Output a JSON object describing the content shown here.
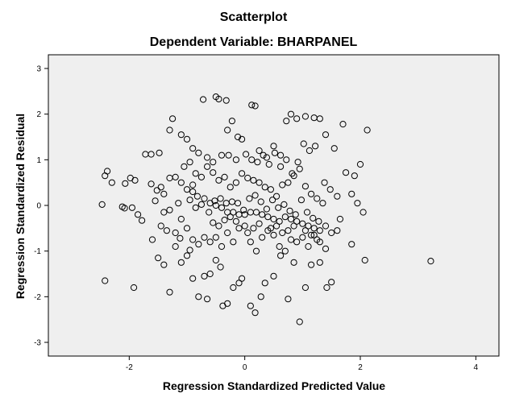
{
  "chart_data": {
    "type": "scatter",
    "title": "Scatterplot",
    "subtitle": "Dependent Variable: BHARPANEL",
    "xlabel": "Regression Standardized Predicted Value",
    "ylabel": "Regression Standardized Residual",
    "xlim": [
      -3.4,
      4.4
    ],
    "ylim": [
      -3.3,
      3.3
    ],
    "x_ticks": [
      -2,
      0,
      2,
      4
    ],
    "y_ticks": [
      -3,
      -2,
      -1,
      0,
      1,
      2,
      3
    ],
    "grid": false,
    "legend": "none",
    "colors": {
      "plot_background": "#efefef",
      "marker_stroke": "#000000",
      "marker_fill": "none"
    },
    "points": [
      [
        -2.42,
        0.65
      ],
      [
        -2.38,
        0.75
      ],
      [
        -2.3,
        0.5
      ],
      [
        -2.47,
        0.02
      ],
      [
        -2.42,
        -1.65
      ],
      [
        -2.12,
        -0.03
      ],
      [
        -2.08,
        -0.06
      ],
      [
        -1.98,
        0.6
      ],
      [
        -1.92,
        -1.8
      ],
      [
        -1.9,
        0.55
      ],
      [
        -2.07,
        0.48
      ],
      [
        -1.72,
        1.12
      ],
      [
        -1.62,
        1.12
      ],
      [
        -1.62,
        0.47
      ],
      [
        -1.52,
        0.33
      ],
      [
        -1.48,
        1.15
      ],
      [
        -1.45,
        0.4
      ],
      [
        -1.4,
        0.25
      ],
      [
        -1.3,
        0.6
      ],
      [
        -1.2,
        0.62
      ],
      [
        -1.1,
        0.5
      ],
      [
        -1.0,
        0.35
      ],
      [
        -0.9,
        0.3
      ],
      [
        -0.82,
        0.2
      ],
      [
        -0.7,
        0.15
      ],
      [
        -0.6,
        0.05
      ],
      [
        -0.5,
        0.0
      ],
      [
        -0.4,
        -0.05
      ],
      [
        -0.3,
        -0.15
      ],
      [
        -0.2,
        -0.15
      ],
      [
        -0.1,
        -0.2
      ],
      [
        0.0,
        -0.2
      ],
      [
        0.1,
        -0.15
      ],
      [
        0.2,
        -0.15
      ],
      [
        0.3,
        -0.2
      ],
      [
        0.4,
        -0.25
      ],
      [
        0.5,
        -0.3
      ],
      [
        0.6,
        -0.35
      ],
      [
        0.7,
        -0.25
      ],
      [
        0.8,
        -0.3
      ],
      [
        0.9,
        -0.35
      ],
      [
        1.0,
        -0.4
      ],
      [
        1.1,
        -0.45
      ],
      [
        1.2,
        -0.5
      ],
      [
        1.3,
        -0.55
      ],
      [
        1.4,
        -0.45
      ],
      [
        1.5,
        -0.6
      ],
      [
        1.6,
        -0.55
      ],
      [
        -1.78,
        -0.33
      ],
      [
        -1.6,
        -0.75
      ],
      [
        -1.45,
        -0.45
      ],
      [
        -1.35,
        -0.55
      ],
      [
        -1.3,
        -0.1
      ],
      [
        -1.2,
        -0.6
      ],
      [
        -1.1,
        -0.3
      ],
      [
        -1.0,
        -0.5
      ],
      [
        -0.9,
        -0.75
      ],
      [
        -0.8,
        -0.85
      ],
      [
        -0.7,
        -0.7
      ],
      [
        -0.6,
        -0.8
      ],
      [
        -0.5,
        -0.7
      ],
      [
        -0.4,
        -0.9
      ],
      [
        -0.3,
        -0.6
      ],
      [
        -0.2,
        -0.8
      ],
      [
        -0.1,
        -0.5
      ],
      [
        0.0,
        -0.45
      ],
      [
        0.1,
        -0.8
      ],
      [
        0.2,
        -1.0
      ],
      [
        0.3,
        -0.7
      ],
      [
        0.4,
        -0.55
      ],
      [
        0.5,
        -0.65
      ],
      [
        0.6,
        -0.9
      ],
      [
        0.7,
        -1.0
      ],
      [
        0.8,
        -0.75
      ],
      [
        0.9,
        -0.8
      ],
      [
        1.0,
        -0.7
      ],
      [
        1.1,
        -0.9
      ],
      [
        1.2,
        -0.65
      ],
      [
        1.3,
        -0.8
      ],
      [
        1.4,
        -0.95
      ],
      [
        -1.25,
        1.9
      ],
      [
        -1.3,
        1.65
      ],
      [
        -1.1,
        1.55
      ],
      [
        -1.0,
        1.45
      ],
      [
        -0.9,
        1.25
      ],
      [
        -0.8,
        1.15
      ],
      [
        -0.72,
        2.32
      ],
      [
        -0.5,
        2.38
      ],
      [
        -0.45,
        2.33
      ],
      [
        -0.32,
        2.3
      ],
      [
        -0.22,
        1.85
      ],
      [
        -0.3,
        1.65
      ],
      [
        -0.12,
        1.5
      ],
      [
        -0.05,
        1.45
      ],
      [
        0.12,
        2.2
      ],
      [
        0.18,
        2.18
      ],
      [
        0.25,
        1.2
      ],
      [
        0.38,
        1.05
      ],
      [
        0.5,
        1.3
      ],
      [
        0.62,
        1.1
      ],
      [
        0.72,
        1.85
      ],
      [
        0.8,
        2.0
      ],
      [
        0.9,
        1.9
      ],
      [
        1.05,
        1.95
      ],
      [
        1.2,
        1.92
      ],
      [
        1.3,
        1.9
      ],
      [
        1.4,
        1.55
      ],
      [
        1.55,
        1.25
      ],
      [
        1.7,
        1.78
      ],
      [
        1.9,
        0.65
      ],
      [
        2.0,
        0.9
      ],
      [
        2.12,
        1.65
      ],
      [
        1.75,
        0.72
      ],
      [
        1.85,
        0.25
      ],
      [
        1.95,
        0.05
      ],
      [
        2.05,
        -0.15
      ],
      [
        1.6,
        0.2
      ],
      [
        1.65,
        -0.3
      ],
      [
        1.85,
        -0.85
      ],
      [
        2.08,
        -1.2
      ],
      [
        3.22,
        -1.22
      ],
      [
        -1.95,
        -0.05
      ],
      [
        -1.85,
        -0.2
      ],
      [
        -1.5,
        -1.15
      ],
      [
        -1.4,
        -1.3
      ],
      [
        -1.3,
        -1.9
      ],
      [
        -1.1,
        -1.25
      ],
      [
        -1.0,
        -1.1
      ],
      [
        -0.9,
        -1.6
      ],
      [
        -0.8,
        -2.0
      ],
      [
        -0.7,
        -1.55
      ],
      [
        -0.65,
        -2.05
      ],
      [
        -0.6,
        -1.5
      ],
      [
        -0.5,
        -1.2
      ],
      [
        -0.42,
        -1.35
      ],
      [
        -0.38,
        -2.2
      ],
      [
        -0.3,
        -2.15
      ],
      [
        -0.2,
        -1.8
      ],
      [
        -0.1,
        -1.7
      ],
      [
        -0.05,
        -1.6
      ],
      [
        0.1,
        -2.2
      ],
      [
        0.18,
        -2.35
      ],
      [
        0.28,
        -2.0
      ],
      [
        0.35,
        -1.7
      ],
      [
        0.5,
        -1.55
      ],
      [
        0.62,
        -1.1
      ],
      [
        0.75,
        -2.05
      ],
      [
        0.85,
        -1.25
      ],
      [
        0.95,
        -2.55
      ],
      [
        1.05,
        -1.8
      ],
      [
        1.15,
        -1.3
      ],
      [
        1.3,
        -1.25
      ],
      [
        1.42,
        -1.8
      ],
      [
        1.5,
        -1.68
      ],
      [
        -0.9,
        0.45
      ],
      [
        -0.75,
        0.62
      ],
      [
        -0.65,
        0.85
      ],
      [
        -0.55,
        0.72
      ],
      [
        -0.45,
        0.55
      ],
      [
        -0.35,
        0.62
      ],
      [
        -0.25,
        0.4
      ],
      [
        -0.15,
        0.5
      ],
      [
        -0.05,
        0.7
      ],
      [
        0.05,
        0.6
      ],
      [
        0.15,
        0.55
      ],
      [
        0.25,
        0.5
      ],
      [
        0.35,
        0.4
      ],
      [
        0.45,
        0.35
      ],
      [
        0.55,
        0.2
      ],
      [
        0.65,
        0.45
      ],
      [
        0.75,
        0.5
      ],
      [
        0.85,
        0.65
      ],
      [
        0.95,
        0.8
      ],
      [
        1.05,
        0.42
      ],
      [
        1.15,
        0.25
      ],
      [
        1.25,
        0.15
      ],
      [
        1.35,
        0.05
      ],
      [
        -1.55,
        0.1
      ],
      [
        -1.4,
        -0.15
      ],
      [
        -1.15,
        0.05
      ],
      [
        -0.95,
        0.12
      ],
      [
        -0.85,
        -0.05
      ],
      [
        -0.75,
        0.02
      ],
      [
        -0.62,
        -0.15
      ],
      [
        -0.52,
        0.1
      ],
      [
        -0.42,
        0.15
      ],
      [
        -0.32,
        0.05
      ],
      [
        -0.22,
        0.08
      ],
      [
        -0.12,
        0.05
      ],
      [
        -0.02,
        -0.1
      ],
      [
        0.08,
        0.15
      ],
      [
        0.18,
        0.22
      ],
      [
        0.28,
        0.08
      ],
      [
        0.38,
        -0.08
      ],
      [
        0.48,
        0.12
      ],
      [
        0.58,
        -0.05
      ],
      [
        0.68,
        0.02
      ],
      [
        0.78,
        -0.12
      ],
      [
        0.88,
        -0.2
      ],
      [
        0.98,
        0.12
      ],
      [
        1.08,
        -0.15
      ],
      [
        1.18,
        -0.28
      ],
      [
        1.28,
        -0.35
      ],
      [
        -0.28,
        1.1
      ],
      [
        -0.15,
        1.0
      ],
      [
        0.02,
        1.12
      ],
      [
        0.12,
        1.0
      ],
      [
        0.22,
        0.95
      ],
      [
        0.32,
        1.1
      ],
      [
        0.42,
        0.9
      ],
      [
        0.52,
        1.15
      ],
      [
        0.62,
        0.85
      ],
      [
        0.72,
        1.0
      ],
      [
        0.82,
        0.7
      ],
      [
        0.92,
        0.95
      ],
      [
        1.02,
        1.35
      ],
      [
        1.12,
        1.2
      ],
      [
        1.22,
        1.3
      ],
      [
        -1.05,
        0.85
      ],
      [
        -0.95,
        0.95
      ],
      [
        -0.85,
        0.7
      ],
      [
        -0.65,
        1.05
      ],
      [
        -0.55,
        0.95
      ],
      [
        -0.4,
        1.1
      ],
      [
        1.38,
        0.5
      ],
      [
        1.48,
        0.35
      ],
      [
        -1.2,
        -0.9
      ],
      [
        -1.12,
        -0.72
      ],
      [
        -0.95,
        -0.98
      ],
      [
        -0.55,
        -0.38
      ],
      [
        -0.45,
        -0.45
      ],
      [
        -0.35,
        -0.32
      ],
      [
        -0.25,
        -0.25
      ],
      [
        -0.15,
        -0.35
      ],
      [
        0.05,
        -0.6
      ],
      [
        0.15,
        -0.5
      ],
      [
        0.25,
        -0.4
      ],
      [
        0.45,
        -0.5
      ],
      [
        0.55,
        -0.45
      ],
      [
        0.65,
        -0.6
      ],
      [
        0.75,
        -0.55
      ],
      [
        0.85,
        -0.45
      ],
      [
        1.05,
        -0.55
      ],
      [
        1.15,
        -0.65
      ],
      [
        1.25,
        -0.75
      ]
    ]
  }
}
